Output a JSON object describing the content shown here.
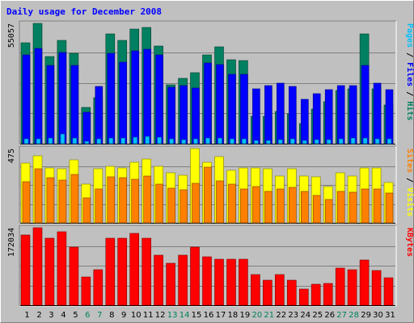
{
  "chart_data": {
    "type": "bar",
    "title": "Daily usage for December 2008",
    "categories": [
      "1",
      "2",
      "3",
      "4",
      "5",
      "6",
      "7",
      "8",
      "9",
      "10",
      "11",
      "12",
      "13",
      "14",
      "15",
      "16",
      "17",
      "18",
      "19",
      "20",
      "21",
      "22",
      "23",
      "24",
      "25",
      "26",
      "27",
      "28",
      "29",
      "30",
      "31"
    ],
    "weekend_days": [
      "6",
      "7",
      "13",
      "14",
      "20",
      "21",
      "27",
      "28"
    ],
    "panels": [
      {
        "id": "hits",
        "ymax_label": "55057",
        "ymax": 55057,
        "side_labels": [
          {
            "text": "Pages",
            "color": "#00c0ff"
          },
          {
            "text": " / ",
            "color": "#000000"
          },
          {
            "text": "Files",
            "color": "#0000ff"
          },
          {
            "text": " / ",
            "color": "#000000"
          },
          {
            "text": "Hits",
            "color": "#008060"
          }
        ],
        "series": [
          {
            "name": "Hits",
            "color": "#008060",
            "values": [
              46240,
              55057,
              40030,
              47320,
              41540,
              16690,
              21130,
              50100,
              47320,
              52410,
              53100,
              44620,
              27130,
              29800,
              32510,
              40700,
              44240,
              38270,
              38030,
              12740,
              12740,
              14690,
              13640,
              9300,
              15830,
              19180,
              24400,
              25100,
              50100,
              25100,
              17640
            ]
          },
          {
            "name": "Files",
            "color": "#0000ff",
            "values": [
              40550,
              43620,
              35780,
              41590,
              35790,
              14340,
              26220,
              41390,
              37480,
              42580,
              43340,
              40610,
              25830,
              26630,
              25500,
              36870,
              36210,
              31770,
              31800,
              25000,
              26560,
              27830,
              26170,
              20210,
              22850,
              24660,
              26620,
              26630,
              35820,
              27590,
              24620
            ]
          },
          {
            "name": "Pages",
            "color": "#00c0ff",
            "values": [
              2210,
              2390,
              2510,
              4380,
              2470,
              990,
              2240,
              2720,
              2720,
              3070,
              3390,
              2880,
              2040,
              1980,
              2270,
              2590,
              2440,
              2320,
              2320,
              1610,
              1600,
              1700,
              2070,
              1640,
              1680,
              1860,
              2270,
              2610,
              2520,
              2220,
              2080
            ]
          }
        ]
      },
      {
        "id": "visits",
        "ymax_label": "475",
        "ymax": 475,
        "side_labels": [
          {
            "text": "Sites",
            "color": "#ff8000"
          },
          {
            "text": " / ",
            "color": "#000000"
          },
          {
            "text": "Visits",
            "color": "#ffff00"
          }
        ],
        "series": [
          {
            "name": "Visits",
            "color": "#ffff00",
            "values": [
              382,
              426,
              353,
              345,
              401,
              247,
              345,
              362,
              353,
              388,
              408,
              362,
              319,
              304,
              475,
              388,
              424,
              337,
              353,
              353,
              344,
              300,
              345,
              301,
              292,
              233,
              318,
              300,
              353,
              353,
              259
            ]
          },
          {
            "name": "Sites",
            "color": "#ff8000",
            "values": [
              262,
              345,
              289,
              275,
              311,
              161,
              217,
              293,
              290,
              277,
              301,
              249,
              223,
              214,
              255,
              356,
              268,
              250,
              218,
              230,
              203,
              216,
              227,
              202,
              174,
              150,
              200,
              198,
              219,
              219,
              193
            ]
          }
        ]
      },
      {
        "id": "kbytes",
        "ymax_label": "172034",
        "ymax": 172034,
        "side_labels": [
          {
            "text": "KBytes",
            "color": "#ff0000"
          }
        ],
        "series": [
          {
            "name": "KBytes",
            "color": "#ff0000",
            "values": [
              155640,
              172034,
              148740,
              163690,
              128330,
              62740,
              78140,
              148920,
              148920,
              160280,
              148920,
              111010,
              93170,
              111010,
              129630,
              107660,
              101730,
              101730,
              101730,
              68540,
              54940,
              68540,
              54940,
              36620,
              46720,
              48930,
              82430,
              78140,
              101110,
              77610,
              61680
            ]
          }
        ]
      }
    ]
  }
}
